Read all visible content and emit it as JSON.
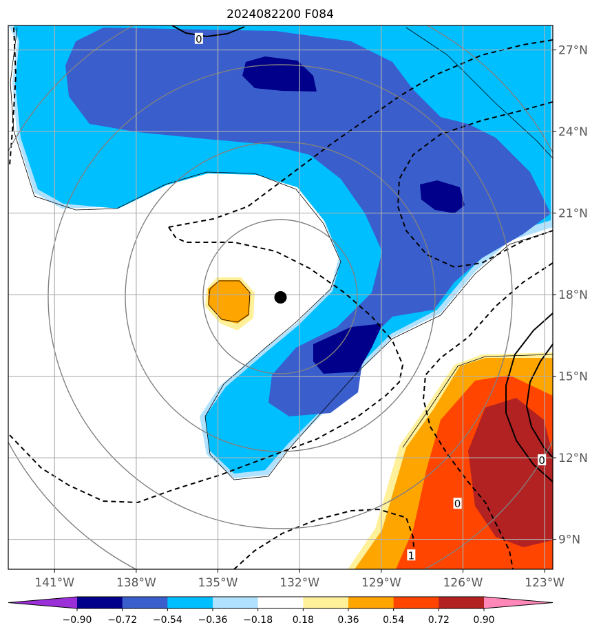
{
  "chart_data": {
    "type": "heatmap",
    "title": "2024082200 F084",
    "xlim": [
      -142.7,
      -122.7
    ],
    "ylim": [
      7.9,
      27.9
    ],
    "xticks": [
      {
        "value": -141,
        "label": "141°W"
      },
      {
        "value": -138,
        "label": "138°W"
      },
      {
        "value": -135,
        "label": "135°W"
      },
      {
        "value": -132,
        "label": "132°W"
      },
      {
        "value": -129,
        "label": "129°W"
      },
      {
        "value": -126,
        "label": "126°W"
      },
      {
        "value": -123,
        "label": "123°W"
      }
    ],
    "yticks": [
      {
        "value": 9,
        "label": "9°N"
      },
      {
        "value": 12,
        "label": "12°N"
      },
      {
        "value": 15,
        "label": "15°N"
      },
      {
        "value": 18,
        "label": "18°N"
      },
      {
        "value": 21,
        "label": "21°N"
      },
      {
        "value": 24,
        "label": "24°N"
      },
      {
        "value": 27,
        "label": "27°N"
      }
    ],
    "grid": true,
    "storm_center": {
      "lon": -132.7,
      "lat": 17.9
    },
    "range_rings_deg": [
      2.1,
      5.7,
      8.5,
      11.3
    ],
    "colorbar": {
      "extend": "both",
      "boundaries": [
        "−0.90",
        "−0.72",
        "−0.54",
        "−0.36",
        "−0.18",
        "0.18",
        "0.36",
        "0.54",
        "0.72",
        "0.90"
      ],
      "colors": [
        "#9b30d8",
        "#00008b",
        "#3a5fcd",
        "#00bfff",
        "#b0e2ff",
        "#ffffff",
        "#fff09a",
        "#ffa500",
        "#ff4500",
        "#b22222",
        "#ff88b8"
      ]
    },
    "contour_labels": [
      {
        "text": "0",
        "lon": -135.7,
        "lat": 27.4
      },
      {
        "text": "0",
        "lon": -123.1,
        "lat": 11.9
      },
      {
        "text": "0",
        "lon": -126.2,
        "lat": 10.3
      },
      {
        "text": "1",
        "lon": -127.9,
        "lat": 8.4
      }
    ]
  }
}
